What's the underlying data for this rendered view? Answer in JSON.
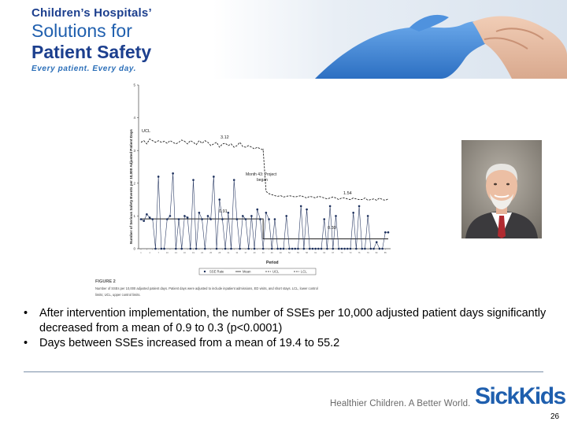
{
  "logo": {
    "line1": "Children’s Hospitals’",
    "line2": "Solutions for",
    "line3": "Patient Safety",
    "line4": "Every patient. Every day."
  },
  "chart_data": {
    "type": "line",
    "ylabel": "Number of Serious Safety Events per 10,000 Adjusted Patient Days",
    "xlabel": "Period",
    "ylim": [
      0,
      5
    ],
    "yticks": [
      0,
      1,
      2,
      3,
      4,
      5
    ],
    "annotations": {
      "ucl_label": "UCL",
      "ucl_before": "3.12",
      "ucl_after": "1.54",
      "mean_before": "0.91",
      "mean_after": "0.30",
      "project_line1": "Month 43: Project",
      "project_line2": "began"
    },
    "intervention_month": 43,
    "mean_before_value": 0.91,
    "mean_after_value": 0.3,
    "series": [
      {
        "name": "SSE Rate",
        "values": [
          0.9,
          0.85,
          1.05,
          0.95,
          0.9,
          0,
          2.2,
          0,
          0,
          0.9,
          1.0,
          2.3,
          0,
          0.9,
          0,
          1.0,
          0.95,
          0,
          2.1,
          0,
          1.1,
          0.9,
          0,
          1.0,
          0.9,
          2.2,
          0,
          1.5,
          0.9,
          0,
          1.1,
          0,
          2.1,
          0.9,
          0,
          1.0,
          0.9,
          0,
          1.0,
          0,
          1.2,
          0.9,
          0,
          1.1,
          0.9,
          0,
          0.9,
          0,
          0,
          0,
          1.0,
          0,
          0,
          0,
          0,
          1.3,
          0,
          1.2,
          0,
          0,
          0,
          0,
          0,
          0.9,
          0,
          1.3,
          0,
          1.0,
          0,
          0,
          0,
          0,
          0,
          1.1,
          0,
          1.3,
          0,
          0,
          1.0,
          0,
          0,
          0.2,
          0,
          0,
          0.5,
          0.5
        ]
      },
      {
        "name": "UCL",
        "values": [
          3.25,
          3.3,
          3.2,
          3.35,
          3.3,
          3.25,
          3.3,
          3.25,
          3.28,
          3.22,
          3.3,
          3.25,
          3.2,
          3.25,
          3.32,
          3.28,
          3.2,
          3.3,
          3.25,
          3.18,
          3.3,
          3.22,
          3.3,
          3.25,
          3.15,
          3.2,
          3.25,
          3.1,
          3.2,
          3.22,
          3.15,
          3.2,
          3.1,
          3.15,
          3.25,
          3.12,
          3.1,
          3.15,
          3.1,
          3.05,
          3.1,
          3.05,
          3.02,
          1.75,
          1.68,
          1.65,
          1.62,
          1.6,
          1.62,
          1.58,
          1.6,
          1.62,
          1.6,
          1.58,
          1.6,
          1.62,
          1.58,
          1.55,
          1.6,
          1.58,
          1.55,
          1.6,
          1.58,
          1.55,
          1.52,
          1.55,
          1.58,
          1.55,
          1.5,
          1.55,
          1.55,
          1.52,
          1.5,
          1.55,
          1.52,
          1.5,
          1.5,
          1.55,
          1.48,
          1.5,
          1.52,
          1.48,
          1.55,
          1.5,
          1.48,
          1.52
        ]
      }
    ],
    "legend": [
      "SSE Rate",
      "Mean",
      "UCL",
      "LCL"
    ],
    "caption_title": "FIGURE 2",
    "caption_line1": "Number of SSEs per 10,000 adjusted patient days. Patient days were adjusted to include inpatient admissions, ED visits, and short stays. LCL, lower control",
    "caption_line2": "limits; UCL, upper control limits."
  },
  "bullets": [
    {
      "marker": "•",
      "text": "After intervention implementation, the number of SSEs per 10,000 adjusted patient days significantly decreased from a mean of 0.9 to 0.3 (p<0.0001)"
    },
    {
      "marker": "•",
      "text": "Days between SSEs increased from a mean of 19.4 to 55.2"
    }
  ],
  "footer": {
    "tagline": "Healthier Children. A Better World.",
    "brand": "SickKids",
    "page_number": "26"
  },
  "colors": {
    "brand_dark": "#1c3f8e",
    "brand_blue": "#1f5fae",
    "glove_blue": "#3f86d6",
    "rule": "#7a8fa8"
  }
}
